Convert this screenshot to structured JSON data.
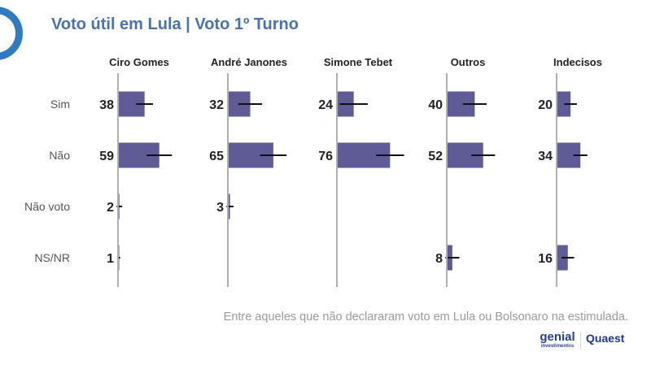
{
  "title": "Voto útil em Lula | Voto 1º Turno",
  "footnote": "Entre aqueles que não declararam voto em Lula ou Bolsonaro na estimulada.",
  "logos": [
    "genial investimentos",
    "Quaest"
  ],
  "colors": {
    "bar": "#5f5b96",
    "title": "#4a72b0",
    "axis": "#b0b0b0",
    "error": "#111111"
  },
  "chart_data": {
    "type": "bar",
    "orientation": "horizontal",
    "categories": [
      "Sim",
      "Não",
      "Não voto",
      "NS/NR"
    ],
    "series": [
      {
        "name": "Ciro Gomes",
        "values": [
          38,
          59,
          2,
          1
        ],
        "errors": [
          12,
          18,
          4,
          2
        ]
      },
      {
        "name": "André Janones",
        "values": [
          32,
          65,
          3,
          null
        ],
        "errors": [
          17,
          19,
          5,
          null
        ]
      },
      {
        "name": "Simone Tebet",
        "values": [
          24,
          76,
          null,
          null
        ],
        "errors": [
          20,
          20,
          null,
          null
        ]
      },
      {
        "name": "Outros",
        "values": [
          40,
          52,
          null,
          8
        ],
        "errors": [
          17,
          17,
          null,
          10
        ]
      },
      {
        "name": "Indecisos",
        "values": [
          20,
          34,
          null,
          16
        ],
        "errors": [
          9,
          10,
          null,
          9
        ]
      }
    ],
    "xlim": [
      0,
      100
    ]
  }
}
